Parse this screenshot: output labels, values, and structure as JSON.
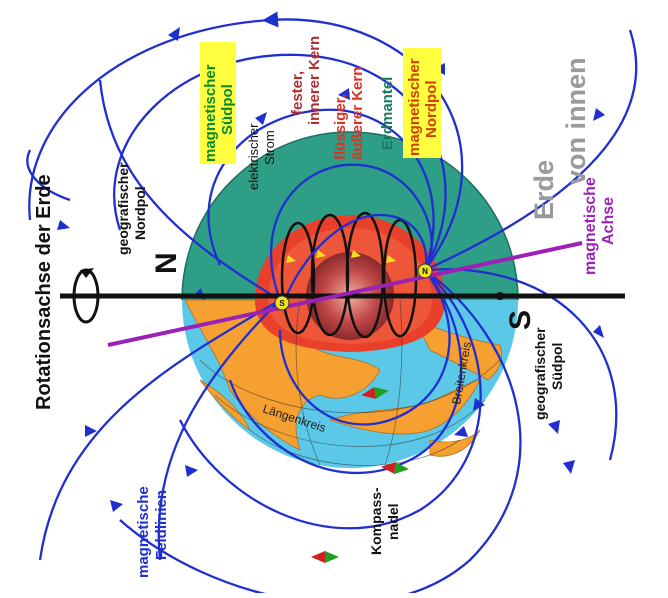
{
  "title": {
    "line1": "Erde",
    "line2": "von innen"
  },
  "labels": {
    "rotation_axis": "Rotationsachse der Erde",
    "geo_north_1": "geografischer",
    "geo_north_2": "Nordpol",
    "geo_south_1": "geografischer",
    "geo_south_2": "Südpol",
    "mag_south_1": "magnetischer",
    "mag_south_2": "Südpol",
    "mag_north_1": "magnetischer",
    "mag_north_2": "Nordpol",
    "current_1": "elektrischer",
    "current_2": "Strom",
    "inner_core_1": "fester,",
    "inner_core_2": "innerer Kern",
    "outer_core_1": "flüssiger,",
    "outer_core_2": "äußerer Kern",
    "mantle": "Erdmantel",
    "mag_axis_1": "magnetische",
    "mag_axis_2": "Achse",
    "field_lines_1": "magnetische",
    "field_lines_2": "Feldlinien",
    "compass_1": "Kompass-",
    "compass_2": "nadel",
    "longitude": "Längenkreis",
    "latitude": "Breitenkreis",
    "n_letter": "N",
    "s_letter": "S",
    "pole_n_marker": "N",
    "pole_s_marker": "S"
  },
  "colors": {
    "field_line": "#1f2fd0",
    "mag_axis": "#9b22b5",
    "ocean": "#5cc8e8",
    "land": "#f5a030",
    "mantle": "#2e9e86",
    "outer_core": "#e8402a",
    "inner_core": "#b04040",
    "highlight_yellow": "#ffff40",
    "title_gray": "#9a9a9a",
    "green_text": "#0a8a2a",
    "orange_text": "#d04000"
  }
}
